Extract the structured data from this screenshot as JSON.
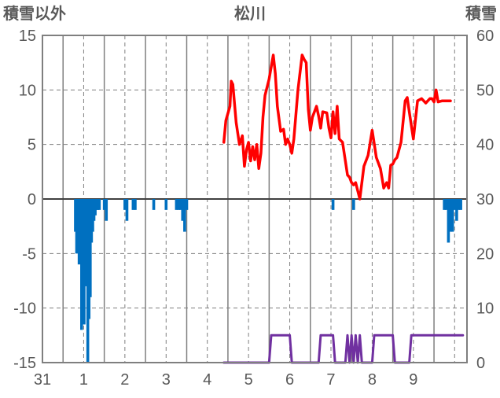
{
  "chart_data": {
    "type": "line",
    "title": "松川",
    "ylabel_left": "積雪以外",
    "ylabel_right": "積雪",
    "x_ticks": [
      "31",
      "1",
      "2",
      "3",
      "4",
      "5",
      "6",
      "7",
      "8",
      "9"
    ],
    "ylim_left": [
      -15,
      15
    ],
    "yticks_left": [
      15,
      10,
      5,
      0,
      -5,
      -10,
      -15
    ],
    "ylim_right": [
      0,
      60
    ],
    "yticks_right": [
      60,
      50,
      40,
      30,
      20,
      10,
      0
    ],
    "grid": true,
    "colors": {
      "temperature": "#ff0000",
      "precipitation": "#0070c0",
      "snow": "#7030a0",
      "axis": "#7f7f7f",
      "grid": "#7f7f7f",
      "zero_line": "#404040"
    },
    "series": [
      {
        "key": "temperature",
        "axis": "left",
        "x": [
          3.9,
          3.95,
          4.05,
          4.08,
          4.12,
          4.2,
          4.28,
          4.35,
          4.4,
          4.45,
          4.5,
          4.55,
          4.6,
          4.65,
          4.7,
          4.75,
          4.8,
          4.85,
          4.9,
          5.0,
          5.1,
          5.15,
          5.2,
          5.28,
          5.35,
          5.4,
          5.45,
          5.5,
          5.55,
          5.6,
          5.7,
          5.8,
          5.85,
          5.9,
          5.95,
          6.0,
          6.05,
          6.15,
          6.2,
          6.25,
          6.3,
          6.4,
          6.45,
          6.5,
          6.55,
          6.6,
          6.65,
          6.7,
          6.78,
          6.85,
          6.9,
          6.95,
          7.0,
          7.05,
          7.1,
          7.2,
          7.3,
          7.4,
          7.5,
          7.6,
          7.7,
          7.78,
          7.85,
          7.9,
          7.95,
          8.0,
          8.05,
          8.1,
          8.15,
          8.2,
          8.3,
          8.35,
          8.4,
          8.5,
          8.6,
          8.7,
          8.8,
          8.85,
          8.9,
          8.95,
          9.0,
          9.05,
          9.1,
          9.2,
          9.25,
          9.3,
          9.4
        ],
        "values": [
          5.2,
          7.2,
          8.5,
          10.8,
          10.5,
          7.0,
          5.0,
          5.8,
          3.0,
          4.5,
          5.2,
          3.5,
          4.8,
          3.6,
          5.0,
          2.8,
          4.2,
          7.5,
          9.5,
          11.0,
          13.2,
          11.5,
          8.5,
          6.2,
          6.4,
          5.0,
          5.5,
          5.0,
          4.2,
          5.5,
          10.0,
          13.2,
          12.8,
          12.5,
          8.2,
          6.3,
          7.5,
          8.5,
          7.6,
          6.5,
          8.0,
          7.9,
          6.5,
          5.6,
          8.0,
          6.0,
          8.5,
          5.5,
          5.2,
          3.5,
          2.2,
          2.0,
          1.5,
          1.3,
          1.5,
          0.0,
          3.0,
          4.0,
          6.3,
          3.8,
          2.8,
          1.0,
          1.5,
          1.0,
          3.1,
          3.2,
          3.6,
          3.8,
          4.5,
          5.2,
          9.0,
          9.3,
          8.0,
          5.5,
          9.0,
          9.2,
          8.8,
          9.0,
          9.2,
          9.2,
          8.9,
          10.0,
          8.9,
          9.0,
          9.0,
          9.0,
          9.0
        ]
      },
      {
        "key": "precipitation",
        "axis": "left",
        "type": "bar",
        "x": [
          0.3,
          0.33,
          0.36,
          0.39,
          0.42,
          0.45,
          0.48,
          0.51,
          0.54,
          0.57,
          0.6,
          0.63,
          0.66,
          0.69,
          0.72,
          0.75,
          0.78,
          0.81,
          0.84,
          0.88,
          1.0,
          1.05,
          1.5,
          1.55,
          1.7,
          1.75,
          2.2,
          2.5,
          2.75,
          2.8,
          2.85,
          2.9,
          2.95,
          3.0,
          6.55,
          7.05,
          9.25,
          9.3,
          9.35,
          9.4,
          9.45,
          9.5,
          9.55,
          9.6,
          9.65
        ],
        "values": [
          -3.0,
          -5.0,
          -4.0,
          -6.0,
          -3.5,
          -12.0,
          -7.0,
          -11.5,
          -5.0,
          -8.0,
          -15.0,
          -11.0,
          -9.0,
          -4.0,
          -3.0,
          -2.0,
          -1.5,
          -1.0,
          -1.0,
          -1.0,
          -1.0,
          -2.0,
          -1.0,
          -2.0,
          -1.0,
          -1.0,
          -1.0,
          -1.0,
          -1.0,
          -1.0,
          -1.0,
          -2.0,
          -3.0,
          -1.0,
          -1.0,
          -1.0,
          -1.0,
          -1.0,
          -4.0,
          -3.0,
          -3.0,
          -1.0,
          -2.0,
          -1.0,
          -1.0
        ]
      },
      {
        "key": "snow",
        "axis": "right",
        "x": [
          3.9,
          5.0,
          5.05,
          5.5,
          5.55,
          6.2,
          6.25,
          6.55,
          6.6,
          6.85,
          6.9,
          6.95,
          7.0,
          7.05,
          7.1,
          7.15,
          7.2,
          7.25,
          7.3,
          7.5,
          7.55,
          8.0,
          8.05,
          8.4,
          8.45,
          9.7
        ],
        "values": [
          0,
          0,
          5,
          5,
          0,
          0,
          5,
          5,
          0,
          0,
          5,
          0,
          5,
          0,
          5,
          0,
          5,
          0,
          0,
          0,
          5,
          5,
          0,
          0,
          5,
          5
        ]
      }
    ]
  }
}
